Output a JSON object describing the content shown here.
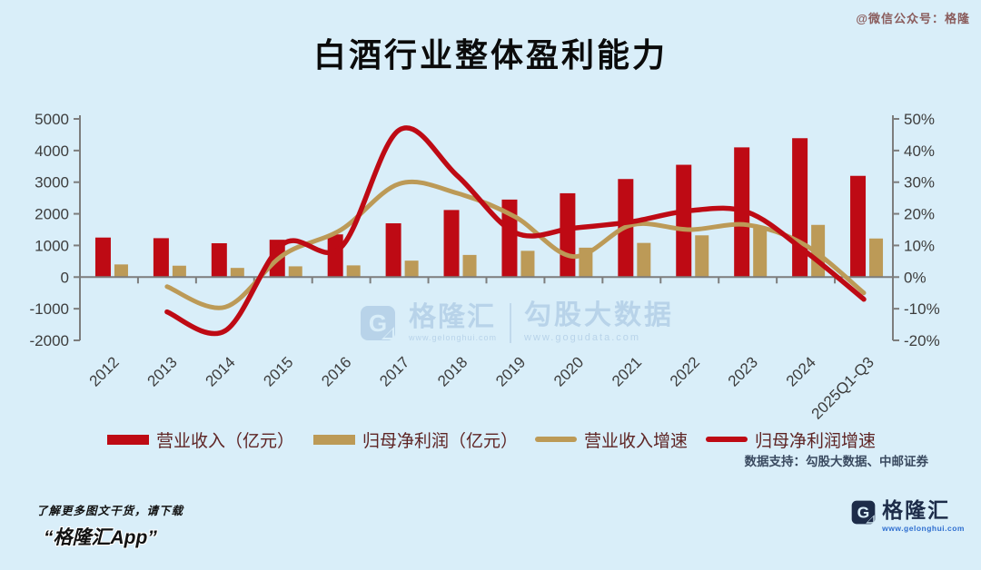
{
  "watermark_topright": "@微信公众号：格隆",
  "title": "白酒行业整体盈利能力",
  "chart_data": {
    "type": "bar+line",
    "title": "白酒行业整体盈利能力",
    "categories": [
      "2012",
      "2013",
      "2014",
      "2015",
      "2016",
      "2017",
      "2018",
      "2019",
      "2020",
      "2021",
      "2022",
      "2023",
      "2024",
      "2025Q1-Q3"
    ],
    "left_axis": {
      "min": -2000,
      "max": 5000,
      "ticks": [
        5000,
        4000,
        3000,
        2000,
        1000,
        0,
        -1000,
        -2000
      ],
      "unit": "亿元"
    },
    "right_axis": {
      "min": -20,
      "max": 50,
      "ticks": [
        50,
        40,
        30,
        20,
        10,
        0,
        -10,
        -20
      ],
      "unit": "%"
    },
    "grid": false,
    "legend_position": "bottom",
    "series": [
      {
        "name": "营业收入（亿元）",
        "type": "bar",
        "axis": "left",
        "color": "#be0a14",
        "values": [
          1250,
          1230,
          1070,
          1180,
          1350,
          1700,
          2120,
          2450,
          2650,
          3100,
          3550,
          4100,
          4390,
          3200
        ]
      },
      {
        "name": "归母净利润（亿元）",
        "type": "bar",
        "axis": "left",
        "color": "#bc9a57",
        "values": [
          400,
          360,
          290,
          340,
          370,
          520,
          700,
          830,
          930,
          1080,
          1320,
          1550,
          1650,
          1220
        ]
      },
      {
        "name": "营业收入增速",
        "type": "line",
        "axis": "right",
        "color": "#bc9a57",
        "values": [
          null,
          -3,
          -9.5,
          7,
          15,
          29.5,
          26.5,
          19,
          6.5,
          16.5,
          15,
          16.5,
          10,
          -5
        ]
      },
      {
        "name": "归母净利润增速",
        "type": "line",
        "axis": "right",
        "color": "#be0a14",
        "values": [
          null,
          -11,
          -17,
          10.5,
          9.5,
          46.5,
          32,
          14,
          15.5,
          17.5,
          21,
          20.5,
          8,
          -7
        ]
      }
    ]
  },
  "watermark_center": {
    "brand": "格隆汇",
    "brand_url": "www.gelonghui.com",
    "right_text": "勾股大数据",
    "right_url": "www.gogudata.com"
  },
  "data_support": "数据支持：勾股大数据、中邮证券",
  "footer": {
    "line1": "了解更多图文干货，请下载",
    "line2": "“格隆汇App”"
  },
  "logo": {
    "icon": "gelonghui-g-icon",
    "name": "格隆汇",
    "url": "www.gelonghui.com"
  },
  "colors": {
    "background": "#d9eef9",
    "axis": "#7d7d7d",
    "tick_text": "#3d3d3d",
    "legend_text": "#5e2424",
    "watermark": "#b3cfe7",
    "logo_navy": "#1d2c49",
    "logo_url_blue": "#2f6fd0"
  }
}
